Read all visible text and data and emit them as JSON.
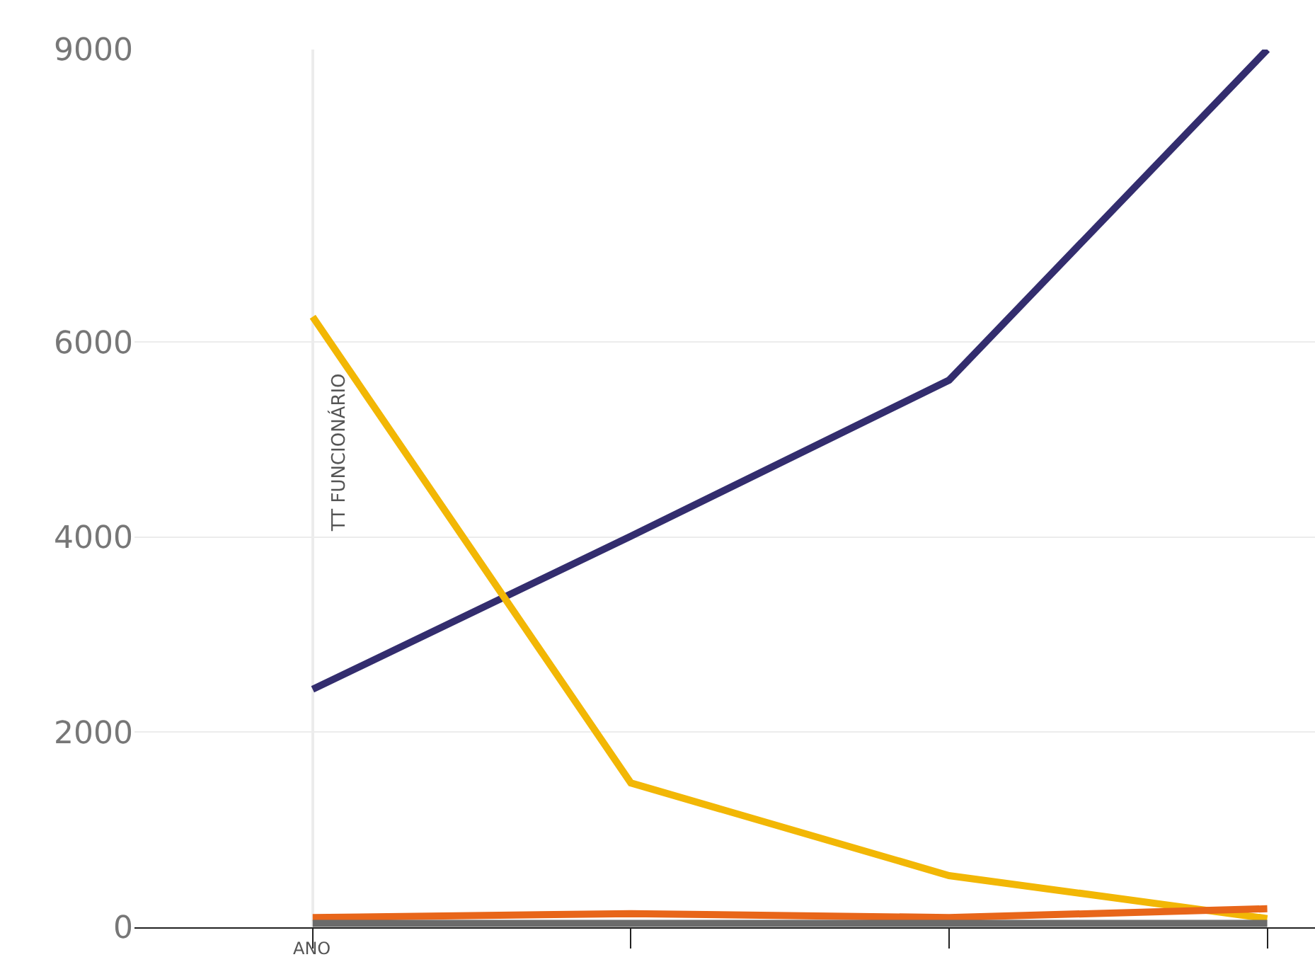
{
  "chart_data": {
    "type": "line",
    "xlabel": "ANO",
    "ylabel": "TT FUNCIONÁRIO",
    "categories": [
      null,
      null,
      null,
      null
    ],
    "series": [
      {
        "color": "#332d6e",
        "values": [
          2440,
          4010,
          5610,
          9000
        ]
      },
      {
        "color": "#f2b705",
        "values": [
          6260,
          1480,
          530,
          90
        ]
      },
      {
        "color": "#e8661a",
        "values": [
          100,
          140,
          100,
          190
        ]
      },
      {
        "color": "#6b6b6b",
        "values": [
          40,
          40,
          40,
          40
        ]
      }
    ],
    "ylim": [
      0,
      9000
    ],
    "yticks": [
      0,
      2000,
      4000,
      6000,
      9000
    ],
    "grid": "y",
    "marker": "none",
    "line_style": "solid"
  }
}
